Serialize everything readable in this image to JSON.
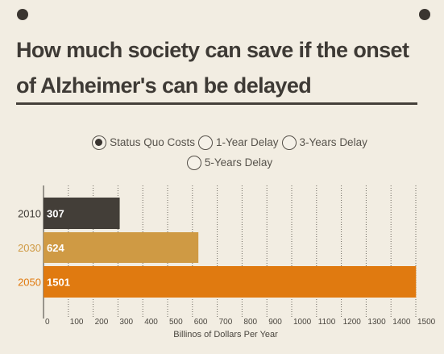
{
  "title": "How much society can save if the onset of Alzheimer's can be delayed",
  "options": [
    {
      "label": "Status Quo Costs",
      "checked": true
    },
    {
      "label": "1-Year Delay",
      "checked": false
    },
    {
      "label": "3-Years Delay",
      "checked": false
    },
    {
      "label": "5-Years Delay",
      "checked": false
    }
  ],
  "colors": {
    "background": "#f2ede2",
    "text": "#3e3a35",
    "bar_2010": "#433e38",
    "bar_2030": "#cf9a44",
    "bar_2050": "#e07a10",
    "bar_label": "#ffffff"
  },
  "chart_data": {
    "type": "bar",
    "orientation": "horizontal",
    "categories": [
      "2010",
      "2030",
      "2050"
    ],
    "values": [
      307,
      624,
      1501
    ],
    "xlabel": "Billinos of Dollars Per Year",
    "xlim": [
      0,
      1500
    ],
    "x_ticks": [
      0,
      100,
      200,
      300,
      400,
      500,
      600,
      700,
      800,
      900,
      1000,
      1100,
      1200,
      1300,
      1400,
      1500
    ],
    "grid": "vertical-dotted",
    "data_labels": true
  }
}
